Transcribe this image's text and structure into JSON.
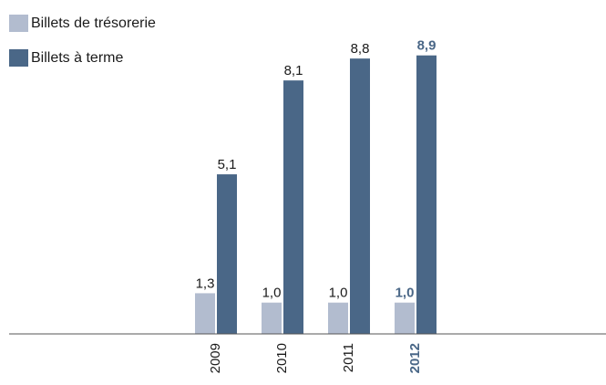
{
  "chart_data": {
    "type": "bar",
    "categories": [
      "2009",
      "2010",
      "2011",
      "2012"
    ],
    "highlight_category": "2012",
    "series": [
      {
        "name": "Billets de trésorerie",
        "color": "#b2bccf",
        "values": [
          1.3,
          1.0,
          1.0,
          1.0
        ],
        "labels": [
          "1,3",
          "1,0",
          "1,0",
          "1,0"
        ]
      },
      {
        "name": "Billets à terme",
        "color": "#4a6787",
        "values": [
          5.1,
          8.1,
          8.8,
          8.9
        ],
        "labels": [
          "5,1",
          "8,1",
          "8,8",
          "8,9"
        ]
      }
    ],
    "ylim": [
      0,
      10
    ],
    "grid": false,
    "legend_placement": "top-left",
    "colors": {
      "text": "#1a1a1a",
      "highlight_text": "#4a6787",
      "axis": "#555555"
    }
  }
}
